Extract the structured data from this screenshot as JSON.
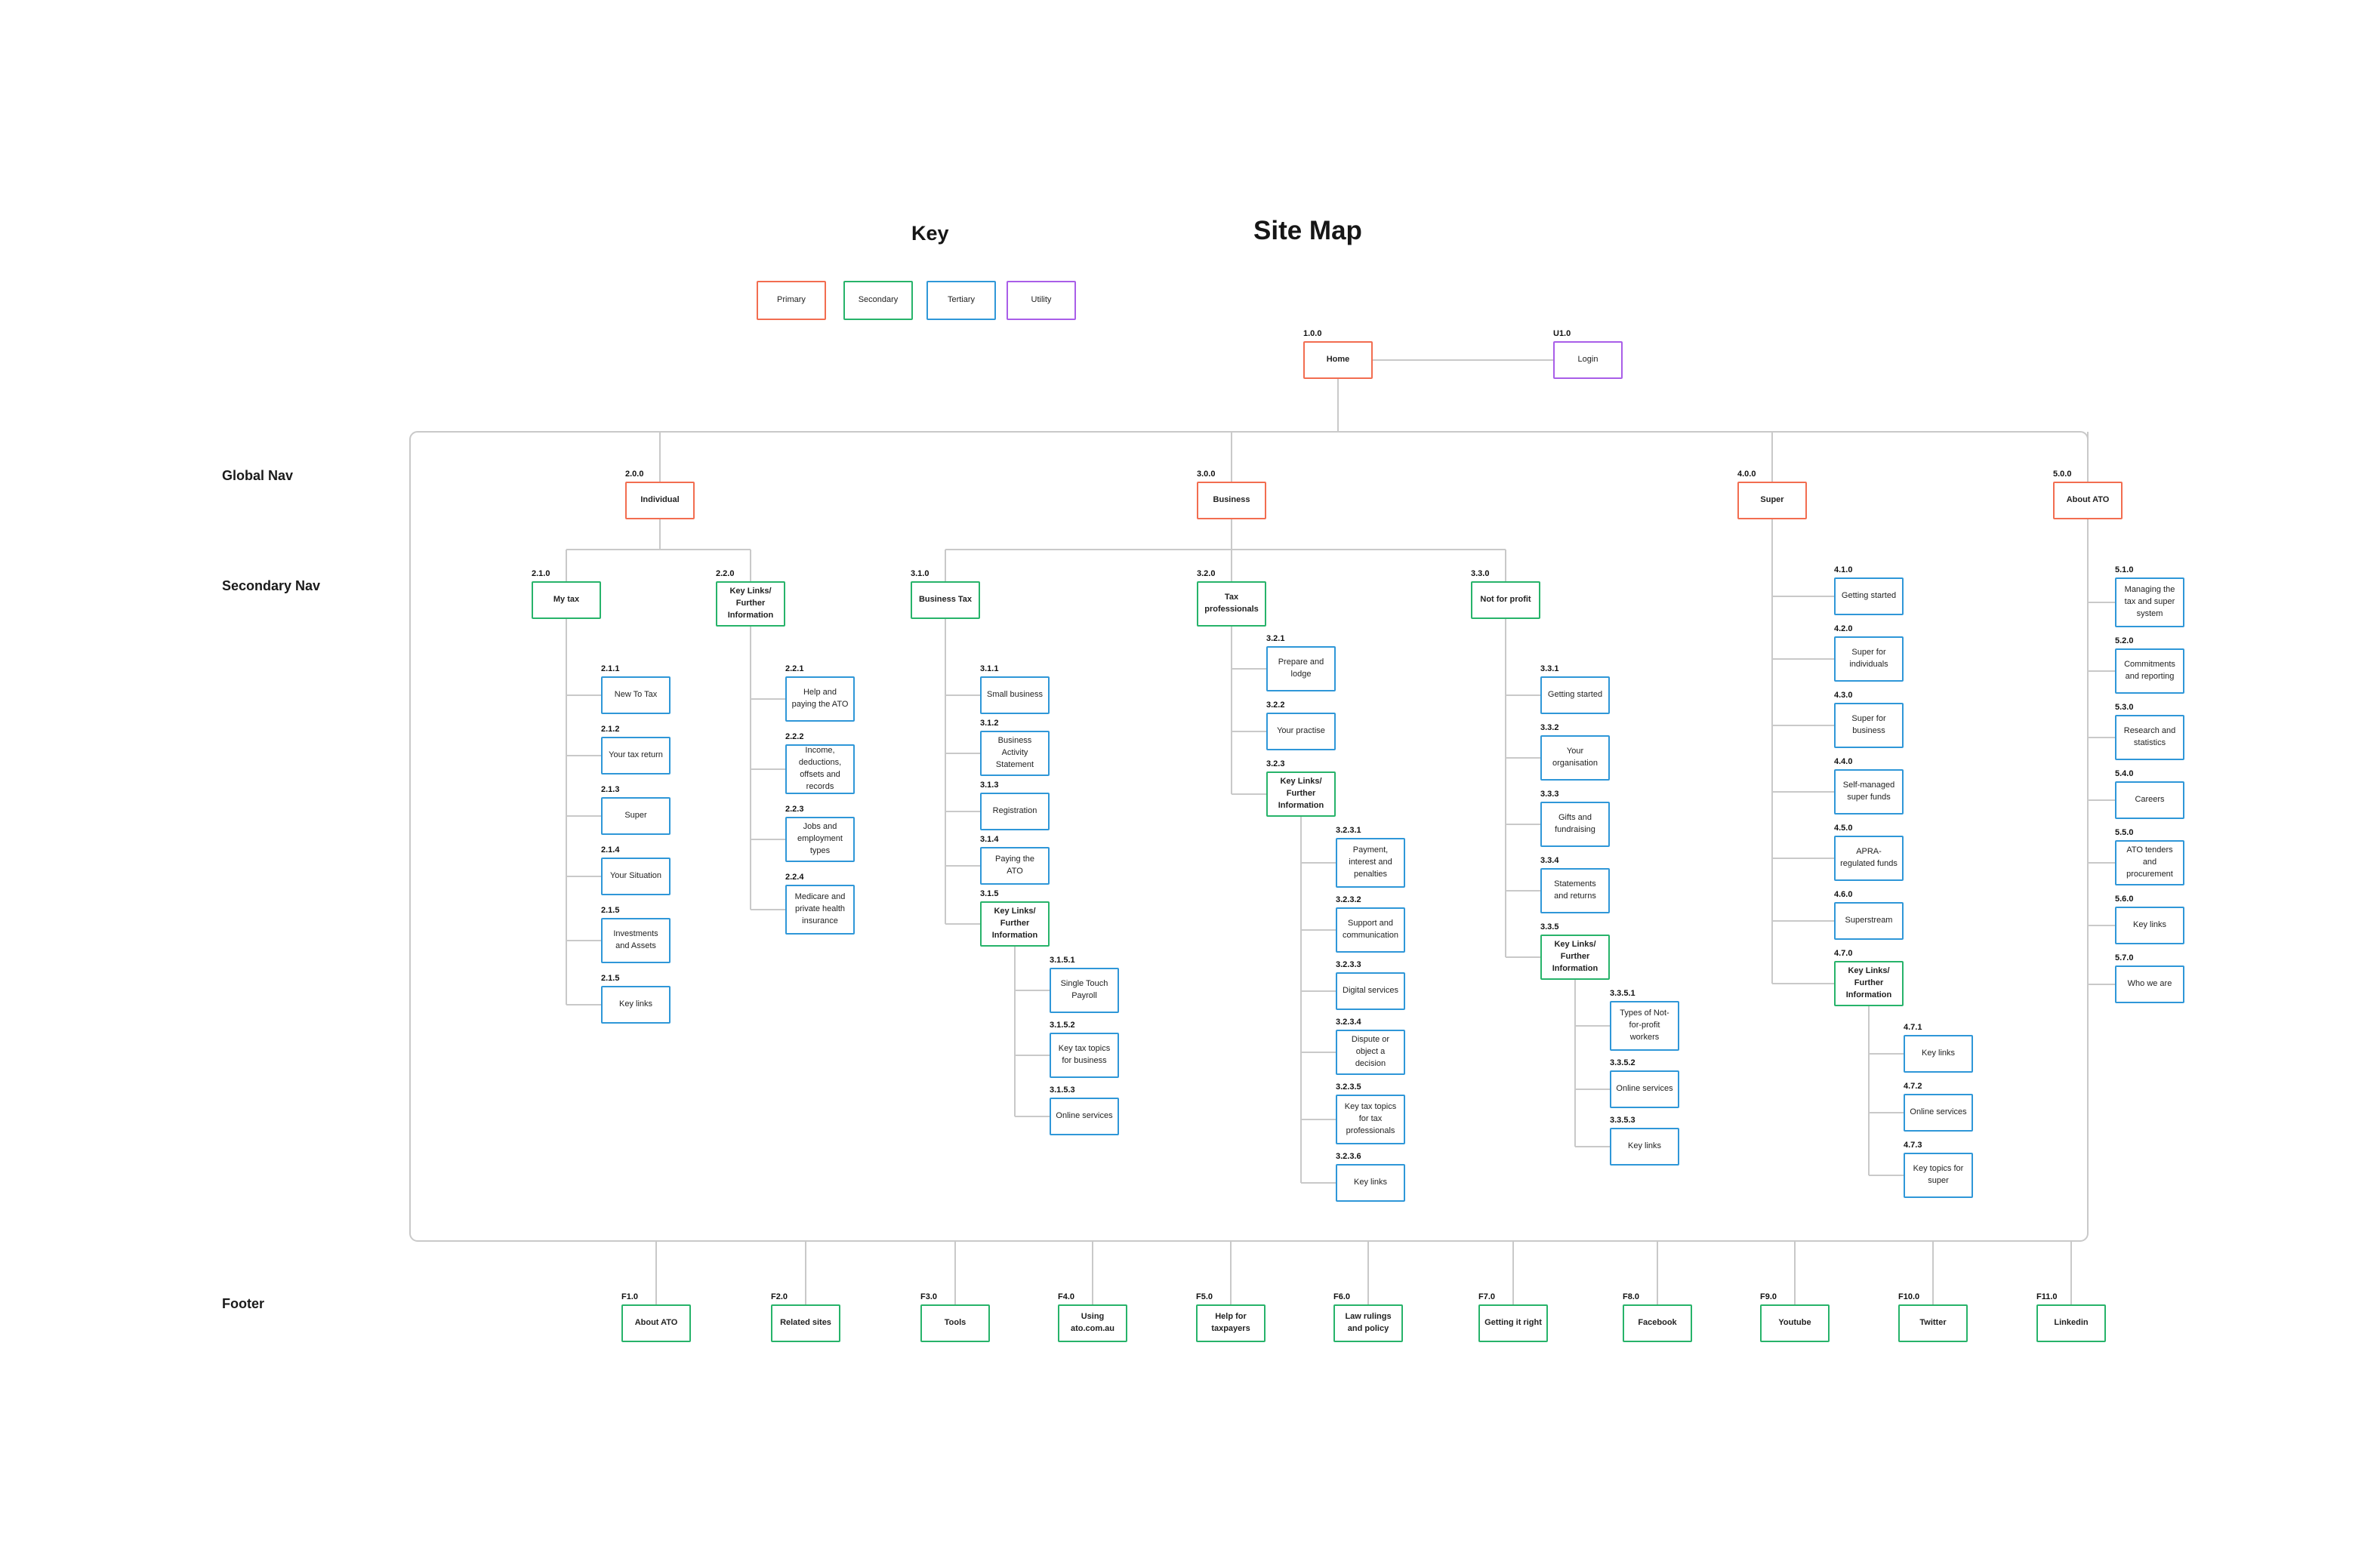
{
  "titles": {
    "key": "Key",
    "sitemap": "Site Map"
  },
  "row_labels": {
    "global": "Global Nav",
    "secondary": "Secondary Nav",
    "footer": "Footer"
  },
  "colors": {
    "primary": "#f26d50",
    "secondary": "#27b36a",
    "tertiary": "#2f97d8",
    "utility": "#a95ee8",
    "line": "#c9c9c9"
  },
  "legend": [
    {
      "label": "Primary",
      "kind": "primary"
    },
    {
      "label": "Secondary",
      "kind": "secondary"
    },
    {
      "label": "Tertiary",
      "kind": "tertiary"
    },
    {
      "label": "Utility",
      "kind": "utility"
    }
  ],
  "home": {
    "code": "1.0.0",
    "label": "Home",
    "kind": "primary"
  },
  "login": {
    "code": "U1.0",
    "label": "Login",
    "kind": "utility"
  },
  "sections": [
    {
      "code": "2.0.0",
      "label": "Individual",
      "kind": "primary",
      "children": [
        {
          "code": "2.1.0",
          "label": "My tax",
          "kind": "secondary",
          "children": [
            {
              "code": "2.1.1",
              "label": "New To Tax",
              "kind": "tertiary"
            },
            {
              "code": "2.1.2",
              "label": "Your tax return",
              "kind": "tertiary"
            },
            {
              "code": "2.1.3",
              "label": "Super",
              "kind": "tertiary"
            },
            {
              "code": "2.1.4",
              "label": "Your Situation",
              "kind": "tertiary"
            },
            {
              "code": "2.1.5",
              "label": "Investments and Assets",
              "kind": "tertiary"
            },
            {
              "code": "2.1.5",
              "label": "Key links",
              "kind": "tertiary"
            }
          ]
        },
        {
          "code": "2.2.0",
          "label": "Key Links/ Further Information",
          "kind": "secondary",
          "children": [
            {
              "code": "2.2.1",
              "label": "Help and paying the ATO",
              "kind": "tertiary"
            },
            {
              "code": "2.2.2",
              "label": "Income, deductions, offsets and records",
              "kind": "tertiary"
            },
            {
              "code": "2.2.3",
              "label": "Jobs and employment types",
              "kind": "tertiary"
            },
            {
              "code": "2.2.4",
              "label": "Medicare and private health insurance",
              "kind": "tertiary"
            }
          ]
        }
      ]
    },
    {
      "code": "3.0.0",
      "label": "Business",
      "kind": "primary",
      "children": [
        {
          "code": "3.1.0",
          "label": "Business Tax",
          "kind": "secondary",
          "children": [
            {
              "code": "3.1.1",
              "label": "Small business",
              "kind": "tertiary"
            },
            {
              "code": "3.1.2",
              "label": "Business Activity Statement",
              "kind": "tertiary"
            },
            {
              "code": "3.1.3",
              "label": "Registration",
              "kind": "tertiary"
            },
            {
              "code": "3.1.4",
              "label": "Paying the ATO",
              "kind": "tertiary"
            },
            {
              "code": "3.1.5",
              "label": "Key Links/ Further Information",
              "kind": "secondary",
              "children": [
                {
                  "code": "3.1.5.1",
                  "label": "Single Touch Payroll",
                  "kind": "tertiary"
                },
                {
                  "code": "3.1.5.2",
                  "label": "Key tax topics for business",
                  "kind": "tertiary"
                },
                {
                  "code": "3.1.5.3",
                  "label": "Online services",
                  "kind": "tertiary"
                }
              ]
            }
          ]
        },
        {
          "code": "3.2.0",
          "label": "Tax professionals",
          "kind": "secondary",
          "children": [
            {
              "code": "3.2.1",
              "label": "Prepare and lodge",
              "kind": "tertiary"
            },
            {
              "code": "3.2.2",
              "label": "Your practise",
              "kind": "tertiary"
            },
            {
              "code": "3.2.3",
              "label": "Key Links/ Further Information",
              "kind": "secondary",
              "children": [
                {
                  "code": "3.2.3.1",
                  "label": "Payment, interest and penalties",
                  "kind": "tertiary"
                },
                {
                  "code": "3.2.3.2",
                  "label": "Support and communication",
                  "kind": "tertiary"
                },
                {
                  "code": "3.2.3.3",
                  "label": "Digital services",
                  "kind": "tertiary"
                },
                {
                  "code": "3.2.3.4",
                  "label": "Dispute or object a decision",
                  "kind": "tertiary"
                },
                {
                  "code": "3.2.3.5",
                  "label": "Key tax topics for tax professionals",
                  "kind": "tertiary"
                },
                {
                  "code": "3.2.3.6",
                  "label": "Key links",
                  "kind": "tertiary"
                }
              ]
            }
          ]
        },
        {
          "code": "3.3.0",
          "label": "Not for profit",
          "kind": "secondary",
          "children": [
            {
              "code": "3.3.1",
              "label": "Getting started",
              "kind": "tertiary"
            },
            {
              "code": "3.3.2",
              "label": "Your organisation",
              "kind": "tertiary"
            },
            {
              "code": "3.3.3",
              "label": "Gifts and fundraising",
              "kind": "tertiary"
            },
            {
              "code": "3.3.4",
              "label": "Statements and returns",
              "kind": "tertiary"
            },
            {
              "code": "3.3.5",
              "label": "Key Links/ Further Information",
              "kind": "secondary",
              "children": [
                {
                  "code": "3.3.5.1",
                  "label": "Types of Not-for-profit workers",
                  "kind": "tertiary"
                },
                {
                  "code": "3.3.5.2",
                  "label": "Online services",
                  "kind": "tertiary"
                },
                {
                  "code": "3.3.5.3",
                  "label": "Key links",
                  "kind": "tertiary"
                }
              ]
            }
          ]
        }
      ]
    },
    {
      "code": "4.0.0",
      "label": "Super",
      "kind": "primary",
      "children": [
        {
          "code": "4.1.0",
          "label": "Getting started",
          "kind": "tertiary"
        },
        {
          "code": "4.2.0",
          "label": "Super for individuals",
          "kind": "tertiary"
        },
        {
          "code": "4.3.0",
          "label": "Super for business",
          "kind": "tertiary"
        },
        {
          "code": "4.4.0",
          "label": "Self-managed super funds",
          "kind": "tertiary"
        },
        {
          "code": "4.5.0",
          "label": "APRA-regulated funds",
          "kind": "tertiary"
        },
        {
          "code": "4.6.0",
          "label": "Superstream",
          "kind": "tertiary"
        },
        {
          "code": "4.7.0",
          "label": "Key Links/ Further Information",
          "kind": "secondary",
          "children": [
            {
              "code": "4.7.1",
              "label": "Key links",
              "kind": "tertiary"
            },
            {
              "code": "4.7.2",
              "label": "Online services",
              "kind": "tertiary"
            },
            {
              "code": "4.7.3",
              "label": "Key topics for super",
              "kind": "tertiary"
            }
          ]
        }
      ]
    },
    {
      "code": "5.0.0",
      "label": "About ATO",
      "kind": "primary",
      "children": [
        {
          "code": "5.1.0",
          "label": "Managing the tax and super system",
          "kind": "tertiary"
        },
        {
          "code": "5.2.0",
          "label": "Commitments and reporting",
          "kind": "tertiary"
        },
        {
          "code": "5.3.0",
          "label": "Research and statistics",
          "kind": "tertiary"
        },
        {
          "code": "5.4.0",
          "label": "Careers",
          "kind": "tertiary"
        },
        {
          "code": "5.5.0",
          "label": "ATO tenders and procurement",
          "kind": "tertiary"
        },
        {
          "code": "5.6.0",
          "label": "Key links",
          "kind": "tertiary"
        },
        {
          "code": "5.7.0",
          "label": "Who we are",
          "kind": "tertiary"
        }
      ]
    }
  ],
  "footer": [
    {
      "code": "F1.0",
      "label": "About ATO",
      "kind": "secondary"
    },
    {
      "code": "F2.0",
      "label": "Related sites",
      "kind": "secondary"
    },
    {
      "code": "F3.0",
      "label": "Tools",
      "kind": "secondary"
    },
    {
      "code": "F4.0",
      "label": "Using ato.com.au",
      "kind": "secondary"
    },
    {
      "code": "F5.0",
      "label": "Help for taxpayers",
      "kind": "secondary"
    },
    {
      "code": "F6.0",
      "label": "Law rulings and policy",
      "kind": "secondary"
    },
    {
      "code": "F7.0",
      "label": "Getting it right",
      "kind": "secondary"
    },
    {
      "code": "F8.0",
      "label": "Facebook",
      "kind": "secondary"
    },
    {
      "code": "F9.0",
      "label": "Youtube",
      "kind": "secondary"
    },
    {
      "code": "F10.0",
      "label": "Twitter",
      "kind": "secondary"
    },
    {
      "code": "F11.0",
      "label": "Linkedin",
      "kind": "secondary"
    }
  ]
}
